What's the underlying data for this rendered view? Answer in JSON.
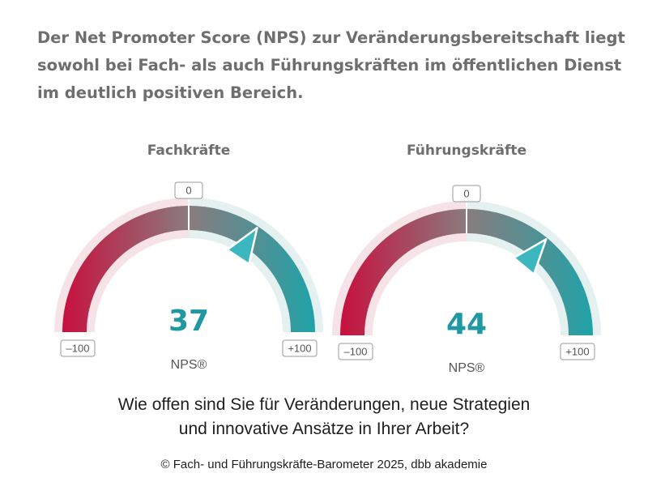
{
  "headline": {
    "line1": "Der Net Promoter Score (NPS) zur Veränderungsbereitschaft liegt",
    "line2": "sowohl bei Fach- als auch Führungskräften im öffentlichen Dienst",
    "line3": "im deutlich positiven Bereich."
  },
  "question": {
    "line1": "Wie offen sind Sie für Veränderungen, neue Strategien",
    "line2": "und innovative Ansätze in Ihrer Arbeit?"
  },
  "copyright": "© Fach- und Führungskräfte-Barometer 2025, dbb akademie",
  "colors": {
    "negative": "#c8103e",
    "neutral": "#8a7b7e",
    "positive": "#1fa3a8",
    "track_negative": "#f6e3e8",
    "track_positive": "#e5f1f1",
    "value_text": "#1f98a3",
    "pointer": "#3db7bf"
  },
  "chart_data": [
    {
      "type": "gauge",
      "title": "Fachkräfte",
      "value": 37,
      "value_label": "37",
      "unit": "NPS®",
      "min": -100,
      "max": 100,
      "min_label": "–100",
      "mid_label": "0",
      "max_label": "+100"
    },
    {
      "type": "gauge",
      "title": "Führungskräfte",
      "value": 44,
      "value_label": "44",
      "unit": "NPS®",
      "min": -100,
      "max": 100,
      "min_label": "–100",
      "mid_label": "0",
      "max_label": "+100"
    }
  ]
}
